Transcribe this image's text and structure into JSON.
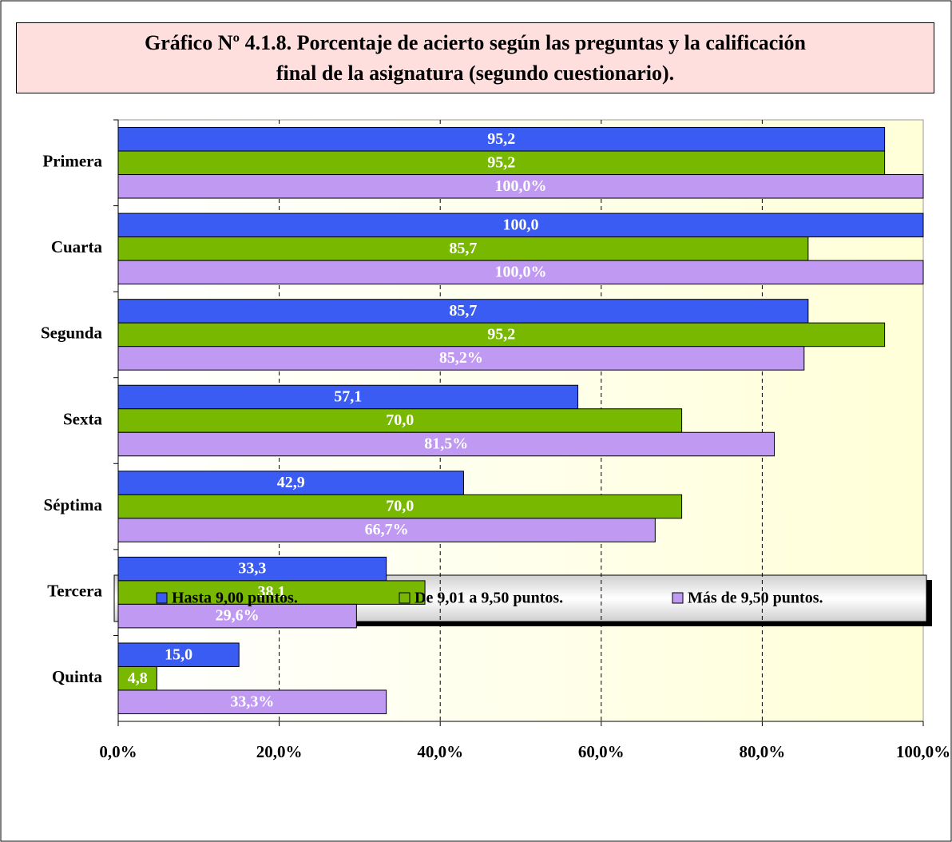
{
  "chart_data": {
    "type": "hbar",
    "title": "Gráfico Nº 4.1.8. Porcentaje de acierto según las preguntas y la calificación final de la asignatura (segundo cuestionario).",
    "categories": [
      "Primera",
      "Cuarta",
      "Segunda",
      "Sexta",
      "Séptima",
      "Tercera",
      "Quinta"
    ],
    "series": [
      {
        "name": "Hasta 9,00 puntos.",
        "color": "#3a5cf2",
        "values": [
          95.2,
          100.0,
          85.7,
          57.1,
          42.9,
          33.3,
          15.0
        ],
        "value_labels": [
          "95,2",
          "100,0",
          "85,7",
          "57,1",
          "42,9",
          "33,3",
          "15,0"
        ]
      },
      {
        "name": "De 9,01 a 9,50 puntos.",
        "color": "#78b800",
        "values": [
          95.2,
          85.7,
          95.2,
          70.0,
          70.0,
          38.1,
          4.8
        ],
        "value_labels": [
          "95,2",
          "85,7",
          "95,2",
          "70,0",
          "70,0",
          "38,1",
          "4,8"
        ]
      },
      {
        "name": "Más de 9,50 puntos.",
        "color": "#bf99f2",
        "values": [
          100.0,
          100.0,
          85.2,
          81.5,
          66.7,
          29.6,
          33.3
        ],
        "value_labels": [
          "100,0%",
          "100,0%",
          "85,2%",
          "81,5%",
          "66,7%",
          "29,6%",
          "33,3%"
        ]
      }
    ],
    "xlim": [
      0,
      100
    ],
    "xticks": [
      {
        "value": 0,
        "label": "0,0%"
      },
      {
        "value": 20,
        "label": "20,0%"
      },
      {
        "value": 40,
        "label": "40,0%"
      },
      {
        "value": 60,
        "label": "60,0%"
      },
      {
        "value": 80,
        "label": "80,0%"
      },
      {
        "value": 100,
        "label": "100,0%"
      }
    ],
    "grid": true
  }
}
